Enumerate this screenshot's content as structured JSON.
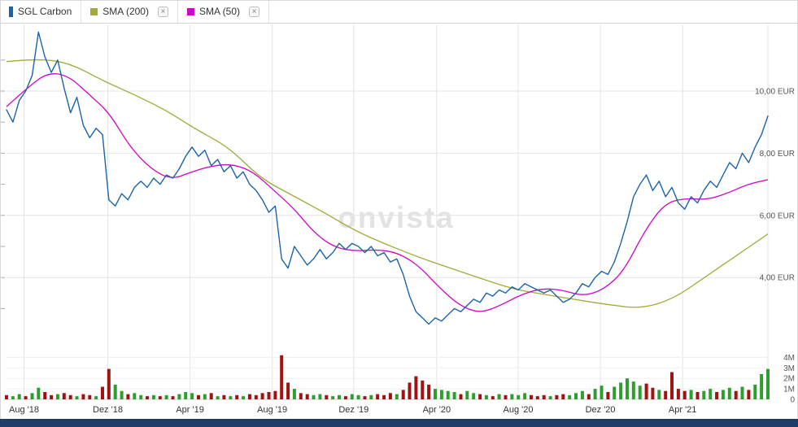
{
  "watermark": "onvista",
  "icons": {
    "close": "×"
  },
  "legend": {
    "items": [
      {
        "label": "SGL Carbon",
        "color": "#1b64a8",
        "closable": false
      },
      {
        "label": "SMA (200)",
        "color": "#a2aa3a",
        "closable": true
      },
      {
        "label": "SMA (50)",
        "color": "#d203c9",
        "closable": true
      }
    ]
  },
  "colors": {
    "price": "#1b64a8",
    "sma200": "#a2aa3a",
    "sma50": "#d203c9",
    "volume_up": "#2f9e2f",
    "volume_down": "#a31212",
    "grid": "#e4e4e4",
    "volume_grid": "#efefef",
    "baseline": "#cfcfcf",
    "watermark": "#e3e3e3",
    "footer": "#1e3c68",
    "axis_text": "#555555",
    "x_axis_text": "#333333"
  },
  "chart_data": {
    "type": "line",
    "title": "",
    "xlabel": "",
    "ylabel": "EUR",
    "ylim": [
      2.2,
      12.2
    ],
    "grid": true,
    "legend_position": "top",
    "x_ticks": [
      {
        "label": "Aug '18",
        "pos": 0.023
      },
      {
        "label": "Dez '18",
        "pos": 0.133
      },
      {
        "label": "Apr '19",
        "pos": 0.241
      },
      {
        "label": "Aug '19",
        "pos": 0.349
      },
      {
        "label": "Dez '19",
        "pos": 0.456
      },
      {
        "label": "Apr '20",
        "pos": 0.565
      },
      {
        "label": "Aug '20",
        "pos": 0.672
      },
      {
        "label": "Dez '20",
        "pos": 0.78
      },
      {
        "label": "Apr '21",
        "pos": 0.888
      }
    ],
    "y_ticks": [
      {
        "label": "10,00 EUR",
        "value": 10
      },
      {
        "label": "8,00 EUR",
        "value": 8
      },
      {
        "label": "6,00 EUR",
        "value": 6
      },
      {
        "label": "4,00 EUR",
        "value": 4
      }
    ],
    "series": [
      {
        "name": "SGL Carbon",
        "color": "#1b64a8",
        "unit": "EUR",
        "values": [
          9.4,
          9.0,
          9.7,
          10.0,
          10.5,
          11.9,
          11.1,
          10.6,
          11.0,
          10.1,
          9.3,
          9.8,
          8.9,
          8.5,
          8.8,
          8.6,
          6.5,
          6.3,
          6.7,
          6.5,
          6.9,
          7.1,
          6.9,
          7.2,
          7.0,
          7.3,
          7.2,
          7.5,
          7.9,
          8.2,
          7.9,
          8.1,
          7.6,
          7.8,
          7.4,
          7.6,
          7.2,
          7.4,
          7.0,
          6.8,
          6.5,
          6.1,
          6.3,
          4.6,
          4.3,
          5.0,
          4.7,
          4.4,
          4.6,
          4.9,
          4.6,
          4.8,
          5.1,
          4.9,
          5.1,
          5.0,
          4.8,
          5.0,
          4.7,
          4.8,
          4.5,
          4.6,
          4.1,
          3.4,
          2.9,
          2.7,
          2.5,
          2.7,
          2.6,
          2.8,
          3.0,
          2.9,
          3.1,
          3.3,
          3.2,
          3.5,
          3.4,
          3.6,
          3.5,
          3.7,
          3.6,
          3.8,
          3.7,
          3.6,
          3.5,
          3.6,
          3.4,
          3.2,
          3.3,
          3.5,
          3.8,
          3.7,
          4.0,
          4.2,
          4.1,
          4.5,
          5.1,
          5.8,
          6.6,
          7.0,
          7.3,
          6.8,
          7.1,
          6.6,
          6.9,
          6.4,
          6.2,
          6.6,
          6.4,
          6.8,
          7.1,
          6.9,
          7.3,
          7.7,
          7.5,
          8.0,
          7.7,
          8.2,
          8.6,
          9.2
        ]
      },
      {
        "name": "SMA (200)",
        "color": "#a2aa3a",
        "unit": "EUR",
        "values": [
          10.95,
          11.05,
          10.9,
          10.35,
          9.9,
          9.4,
          8.75,
          8.2,
          7.2,
          6.65,
          6.1,
          5.5,
          5.05,
          4.65,
          4.3,
          3.95,
          3.62,
          3.45,
          3.28,
          3.12,
          3.0,
          3.3,
          4.0,
          4.7,
          5.4
        ]
      },
      {
        "name": "SMA (50)",
        "color": "#d203c9",
        "unit": "EUR",
        "values": [
          9.5,
          10.1,
          10.6,
          10.5,
          9.9,
          9.3,
          8.2,
          7.5,
          7.15,
          7.4,
          7.6,
          7.65,
          7.4,
          6.8,
          6.2,
          5.4,
          4.95,
          4.85,
          4.9,
          4.8,
          4.4,
          3.7,
          3.1,
          2.85,
          3.1,
          3.45,
          3.65,
          3.6,
          3.4,
          3.6,
          4.2,
          5.5,
          6.4,
          6.55,
          6.5,
          6.7,
          7.0,
          7.15
        ]
      }
    ],
    "volume": {
      "unit": "M",
      "ylim": [
        0,
        4.35
      ],
      "y_ticks": [
        {
          "label": "4M",
          "value": 4
        },
        {
          "label": "3M",
          "value": 3
        },
        {
          "label": "2M",
          "value": 2
        },
        {
          "label": "1M",
          "value": 1
        },
        {
          "label": "0",
          "value": 0
        }
      ],
      "bars": [
        [
          0.4,
          "r"
        ],
        [
          0.3,
          "g"
        ],
        [
          0.5,
          "g"
        ],
        [
          0.3,
          "r"
        ],
        [
          0.6,
          "g"
        ],
        [
          1.1,
          "g"
        ],
        [
          0.7,
          "r"
        ],
        [
          0.4,
          "r"
        ],
        [
          0.5,
          "g"
        ],
        [
          0.6,
          "r"
        ],
        [
          0.4,
          "r"
        ],
        [
          0.3,
          "g"
        ],
        [
          0.5,
          "r"
        ],
        [
          0.4,
          "r"
        ],
        [
          0.3,
          "g"
        ],
        [
          1.2,
          "r"
        ],
        [
          2.9,
          "r"
        ],
        [
          1.4,
          "g"
        ],
        [
          0.8,
          "g"
        ],
        [
          0.5,
          "r"
        ],
        [
          0.6,
          "g"
        ],
        [
          0.4,
          "g"
        ],
        [
          0.3,
          "r"
        ],
        [
          0.4,
          "g"
        ],
        [
          0.3,
          "r"
        ],
        [
          0.4,
          "g"
        ],
        [
          0.3,
          "r"
        ],
        [
          0.5,
          "g"
        ],
        [
          0.7,
          "g"
        ],
        [
          0.6,
          "g"
        ],
        [
          0.4,
          "r"
        ],
        [
          0.5,
          "g"
        ],
        [
          0.6,
          "r"
        ],
        [
          0.3,
          "g"
        ],
        [
          0.4,
          "r"
        ],
        [
          0.3,
          "g"
        ],
        [
          0.4,
          "r"
        ],
        [
          0.3,
          "g"
        ],
        [
          0.5,
          "r"
        ],
        [
          0.4,
          "r"
        ],
        [
          0.6,
          "r"
        ],
        [
          0.7,
          "r"
        ],
        [
          0.8,
          "r"
        ],
        [
          4.2,
          "r"
        ],
        [
          1.6,
          "r"
        ],
        [
          1.0,
          "g"
        ],
        [
          0.6,
          "r"
        ],
        [
          0.5,
          "r"
        ],
        [
          0.4,
          "g"
        ],
        [
          0.5,
          "g"
        ],
        [
          0.4,
          "r"
        ],
        [
          0.3,
          "g"
        ],
        [
          0.4,
          "g"
        ],
        [
          0.3,
          "r"
        ],
        [
          0.5,
          "g"
        ],
        [
          0.4,
          "g"
        ],
        [
          0.3,
          "r"
        ],
        [
          0.4,
          "g"
        ],
        [
          0.5,
          "r"
        ],
        [
          0.4,
          "r"
        ],
        [
          0.6,
          "r"
        ],
        [
          0.5,
          "g"
        ],
        [
          0.9,
          "r"
        ],
        [
          1.6,
          "r"
        ],
        [
          2.2,
          "r"
        ],
        [
          1.8,
          "r"
        ],
        [
          1.4,
          "r"
        ],
        [
          1.0,
          "g"
        ],
        [
          0.9,
          "g"
        ],
        [
          0.8,
          "g"
        ],
        [
          0.7,
          "g"
        ],
        [
          0.5,
          "r"
        ],
        [
          0.8,
          "g"
        ],
        [
          0.6,
          "g"
        ],
        [
          0.5,
          "r"
        ],
        [
          0.4,
          "g"
        ],
        [
          0.3,
          "r"
        ],
        [
          0.5,
          "g"
        ],
        [
          0.4,
          "r"
        ],
        [
          0.5,
          "g"
        ],
        [
          0.4,
          "g"
        ],
        [
          0.6,
          "g"
        ],
        [
          0.4,
          "r"
        ],
        [
          0.3,
          "r"
        ],
        [
          0.4,
          "r"
        ],
        [
          0.3,
          "g"
        ],
        [
          0.4,
          "r"
        ],
        [
          0.5,
          "r"
        ],
        [
          0.4,
          "g"
        ],
        [
          0.6,
          "g"
        ],
        [
          0.8,
          "g"
        ],
        [
          0.5,
          "r"
        ],
        [
          1.0,
          "g"
        ],
        [
          1.3,
          "g"
        ],
        [
          0.7,
          "r"
        ],
        [
          1.2,
          "g"
        ],
        [
          1.6,
          "g"
        ],
        [
          2.0,
          "g"
        ],
        [
          1.7,
          "g"
        ],
        [
          1.3,
          "g"
        ],
        [
          1.5,
          "r"
        ],
        [
          1.1,
          "r"
        ],
        [
          0.9,
          "g"
        ],
        [
          0.8,
          "r"
        ],
        [
          2.6,
          "r"
        ],
        [
          1.0,
          "r"
        ],
        [
          0.8,
          "r"
        ],
        [
          0.9,
          "g"
        ],
        [
          0.7,
          "r"
        ],
        [
          0.8,
          "g"
        ],
        [
          1.0,
          "g"
        ],
        [
          0.7,
          "r"
        ],
        [
          0.9,
          "g"
        ],
        [
          1.1,
          "g"
        ],
        [
          0.8,
          "r"
        ],
        [
          1.2,
          "g"
        ],
        [
          0.9,
          "r"
        ],
        [
          1.4,
          "g"
        ],
        [
          2.4,
          "g"
        ],
        [
          2.9,
          "g"
        ]
      ]
    }
  }
}
